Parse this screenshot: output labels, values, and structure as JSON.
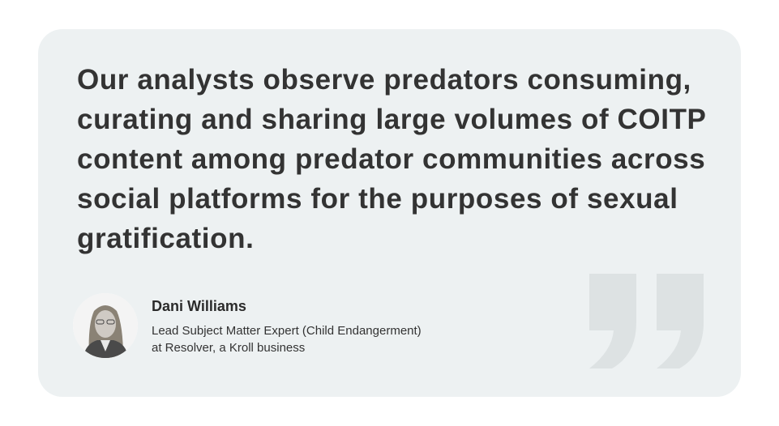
{
  "quote": {
    "text": "Our analysts observe predators consuming, curating and sharing large volumes of COITP content among predator communities across social platforms for the purposes of sexual gratification."
  },
  "attribution": {
    "name": "Dani Williams",
    "title_line1": "Lead Subject Matter Expert (Child Endangerment)",
    "title_line2": "at Resolver, a Kroll business"
  },
  "colors": {
    "card": "#edf1f2",
    "text": "#333333",
    "quote_mark": "#dde2e3"
  },
  "icons": {
    "quote_mark": "closing-quote-icon"
  }
}
